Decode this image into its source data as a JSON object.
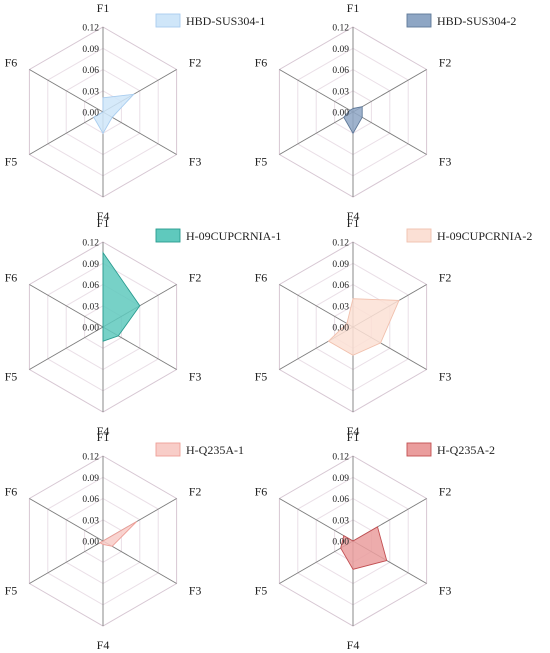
{
  "chart_data": [
    {
      "type": "radar",
      "axes": [
        "F1",
        "F2",
        "F3",
        "F4",
        "F5",
        "F6"
      ],
      "ticks": [
        "0.00",
        "0.03",
        "0.06",
        "0.09",
        "0.12"
      ],
      "rmax": 0.12,
      "series": [
        {
          "name": "HBD-SUS304-1",
          "values": [
            0.02,
            0.05,
            0.015,
            0.03,
            0.015,
            0.0
          ],
          "fill": "#cfe6f9",
          "stroke": "#a9cdef"
        }
      ],
      "legend": "top-right"
    },
    {
      "type": "radar",
      "axes": [
        "F1",
        "F2",
        "F3",
        "F4",
        "F5",
        "F6"
      ],
      "ticks": [
        "0.00",
        "0.03",
        "0.06",
        "0.09",
        "0.12"
      ],
      "rmax": 0.12,
      "series": [
        {
          "name": "HBD-SUS304-2",
          "values": [
            0.005,
            0.015,
            0.015,
            0.03,
            0.015,
            0.005
          ],
          "fill": "#8ea6c4",
          "stroke": "#5e7898"
        }
      ],
      "legend": "top-right"
    },
    {
      "type": "radar",
      "axes": [
        "F1",
        "F2",
        "F3",
        "F4",
        "F5",
        "F6"
      ],
      "ticks": [
        "0.00",
        "0.03",
        "0.06",
        "0.09",
        "0.12"
      ],
      "rmax": 0.12,
      "series": [
        {
          "name": "H-09CUPCRNIA-1",
          "values": [
            0.105,
            0.06,
            0.025,
            0.02,
            0.0,
            0.0
          ],
          "fill": "#5fc9bd",
          "stroke": "#2a9c90"
        }
      ],
      "legend": "top-right"
    },
    {
      "type": "radar",
      "axes": [
        "F1",
        "F2",
        "F3",
        "F4",
        "F5",
        "F6"
      ],
      "ticks": [
        "0.00",
        "0.03",
        "0.06",
        "0.09",
        "0.12"
      ],
      "rmax": 0.12,
      "series": [
        {
          "name": "H-09CUPCRNIA-2",
          "values": [
            0.04,
            0.075,
            0.045,
            0.04,
            0.04,
            0.01
          ],
          "fill": "#fbe0d5",
          "stroke": "#f1c0ad"
        }
      ],
      "legend": "top-right"
    },
    {
      "type": "radar",
      "axes": [
        "F1",
        "F2",
        "F3",
        "F4",
        "F5",
        "F6"
      ],
      "ticks": [
        "0.00",
        "0.03",
        "0.06",
        "0.09",
        "0.12"
      ],
      "rmax": 0.12,
      "series": [
        {
          "name": "H-Q235A-1",
          "values": [
            0.0,
            0.055,
            0.015,
            0.005,
            0.005,
            0.0
          ],
          "fill": "#f8cdc8",
          "stroke": "#ee9f98"
        }
      ],
      "legend": "top-right"
    },
    {
      "type": "radar",
      "axes": [
        "F1",
        "F2",
        "F3",
        "F4",
        "F5",
        "F6"
      ],
      "ticks": [
        "0.00",
        "0.03",
        "0.06",
        "0.09",
        "0.12"
      ],
      "rmax": 0.12,
      "series": [
        {
          "name": "H-Q235A-2",
          "values": [
            0.0,
            0.04,
            0.055,
            0.04,
            0.02,
            0.015
          ],
          "fill": "#ea9d9d",
          "stroke": "#c24f52"
        }
      ],
      "legend": "top-right"
    }
  ]
}
